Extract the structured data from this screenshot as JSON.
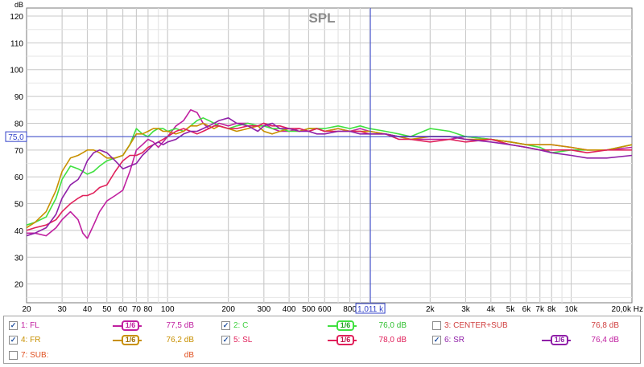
{
  "chart_data": {
    "type": "line",
    "title": "SPL",
    "y_unit": "dB",
    "x_unit": "Hz",
    "x_scale": "log",
    "xlim": [
      20,
      20000
    ],
    "ylim": [
      13,
      123
    ],
    "grid": true,
    "y_ticks": [
      120,
      110,
      100,
      90,
      80,
      70,
      60,
      50,
      40,
      30,
      20
    ],
    "x_ticks": [
      {
        "v": 20,
        "l": "20"
      },
      {
        "v": 30,
        "l": "30"
      },
      {
        "v": 40,
        "l": "40"
      },
      {
        "v": 50,
        "l": "50"
      },
      {
        "v": 60,
        "l": "60"
      },
      {
        "v": 70,
        "l": "70"
      },
      {
        "v": 80,
        "l": "80"
      },
      {
        "v": 100,
        "l": "100"
      },
      {
        "v": 200,
        "l": "200"
      },
      {
        "v": 300,
        "l": "300"
      },
      {
        "v": 400,
        "l": "400"
      },
      {
        "v": 500,
        "l": "500"
      },
      {
        "v": 600,
        "l": "600"
      },
      {
        "v": 800,
        "l": "800"
      },
      {
        "v": 2000,
        "l": "2k"
      },
      {
        "v": 3000,
        "l": "3k"
      },
      {
        "v": 4000,
        "l": "4k"
      },
      {
        "v": 5000,
        "l": "5k"
      },
      {
        "v": 6000,
        "l": "6k"
      },
      {
        "v": 7000,
        "l": "7k"
      },
      {
        "v": 8000,
        "l": "8k"
      },
      {
        "v": 10000,
        "l": "10k"
      },
      {
        "v": 20000,
        "l": "20,0k Hz"
      }
    ],
    "cursor": {
      "x": 1011,
      "x_label": "1,011 k",
      "y": 75.0,
      "y_label": "75,0"
    },
    "series": [
      {
        "name": "1: FL",
        "color": "#c020a0",
        "x": [
          20,
          22,
          25,
          28,
          30,
          33,
          36,
          38,
          40,
          43,
          46,
          50,
          55,
          60,
          65,
          70,
          75,
          80,
          85,
          90,
          95,
          100,
          110,
          120,
          130,
          140,
          150,
          160,
          170,
          180,
          200,
          220,
          250,
          280,
          300,
          330,
          360,
          400,
          450,
          500,
          550,
          600,
          700,
          800,
          900,
          1000,
          1200,
          1400,
          1600,
          2000,
          2500,
          3000,
          4000,
          5000,
          6000,
          7000,
          8000,
          10000,
          12000,
          15000,
          20000
        ],
        "y": [
          39,
          39,
          38,
          41,
          44,
          47,
          44,
          39,
          37,
          42,
          47,
          51,
          53,
          55,
          62,
          70,
          72,
          74,
          73,
          71,
          73,
          75,
          79,
          81,
          85,
          84,
          80,
          78,
          79,
          80,
          79,
          80,
          80,
          79,
          80,
          78,
          77,
          77,
          78,
          77,
          78,
          77,
          78,
          77,
          78,
          77,
          76,
          75,
          74,
          74,
          74,
          75,
          74,
          73,
          72,
          72,
          72,
          71,
          70,
          70,
          71
        ]
      },
      {
        "name": "2: C",
        "color": "#40e040",
        "x": [
          20,
          22,
          25,
          28,
          30,
          33,
          36,
          38,
          40,
          43,
          46,
          50,
          55,
          60,
          65,
          70,
          75,
          80,
          85,
          90,
          95,
          100,
          110,
          120,
          130,
          140,
          150,
          160,
          170,
          180,
          200,
          220,
          250,
          280,
          300,
          330,
          360,
          400,
          450,
          500,
          550,
          600,
          700,
          800,
          900,
          1000,
          1200,
          1400,
          1600,
          2000,
          2500,
          3000,
          4000,
          5000,
          6000,
          7000,
          8000,
          10000,
          12000,
          15000,
          20000
        ],
        "y": [
          42,
          43,
          45,
          52,
          59,
          64,
          63,
          62,
          61,
          62,
          64,
          66,
          67,
          68,
          72,
          78,
          76,
          75,
          77,
          78,
          78,
          77,
          78,
          77,
          79,
          81,
          82,
          81,
          80,
          79,
          78,
          79,
          80,
          79,
          79,
          78,
          78,
          77,
          77,
          78,
          78,
          78,
          79,
          78,
          79,
          78,
          77,
          76,
          75,
          78,
          77,
          75,
          74,
          73,
          72,
          71,
          69,
          70,
          70,
          70,
          72
        ]
      },
      {
        "name": "4: FR",
        "color": "#c89000",
        "x": [
          20,
          22,
          25,
          28,
          30,
          33,
          36,
          38,
          40,
          43,
          46,
          50,
          55,
          60,
          65,
          70,
          75,
          80,
          85,
          90,
          95,
          100,
          110,
          120,
          130,
          140,
          150,
          160,
          170,
          180,
          200,
          220,
          250,
          280,
          300,
          330,
          360,
          400,
          450,
          500,
          550,
          600,
          700,
          800,
          900,
          1000,
          1200,
          1400,
          1600,
          2000,
          2500,
          3000,
          4000,
          5000,
          6000,
          7000,
          8000,
          10000,
          12000,
          15000,
          20000
        ],
        "y": [
          41,
          43,
          47,
          55,
          62,
          67,
          68,
          69,
          70,
          70,
          69,
          67,
          67,
          68,
          72,
          76,
          76,
          77,
          78,
          78,
          77,
          77,
          76,
          77,
          79,
          79,
          80,
          79,
          78,
          79,
          78,
          77,
          78,
          79,
          77,
          76,
          77,
          78,
          77,
          78,
          78,
          77,
          78,
          77,
          77,
          77,
          76,
          75,
          74,
          75,
          75,
          74,
          74,
          73,
          72,
          72,
          72,
          71,
          70,
          70,
          72
        ]
      },
      {
        "name": "5: SL",
        "color": "#e0205a",
        "x": [
          20,
          22,
          25,
          28,
          30,
          33,
          36,
          38,
          40,
          43,
          46,
          50,
          55,
          60,
          65,
          70,
          75,
          80,
          85,
          90,
          95,
          100,
          110,
          120,
          130,
          140,
          150,
          160,
          170,
          180,
          200,
          220,
          250,
          280,
          300,
          330,
          360,
          400,
          450,
          500,
          550,
          600,
          700,
          800,
          900,
          1000,
          1200,
          1400,
          1600,
          2000,
          2500,
          3000,
          4000,
          5000,
          6000,
          7000,
          8000,
          10000,
          12000,
          15000,
          20000
        ],
        "y": [
          40,
          41,
          42,
          44,
          47,
          50,
          52,
          53,
          53,
          54,
          56,
          57,
          62,
          66,
          68,
          68,
          69,
          71,
          72,
          73,
          74,
          75,
          77,
          78,
          77,
          76,
          77,
          78,
          79,
          79,
          78,
          78,
          79,
          79,
          80,
          79,
          79,
          78,
          78,
          77,
          78,
          77,
          77,
          77,
          77,
          76,
          76,
          74,
          74,
          73,
          74,
          73,
          74,
          72,
          71,
          70,
          70,
          70,
          69,
          70,
          70
        ]
      },
      {
        "name": "6: SR",
        "color": "#9020a8",
        "x": [
          20,
          22,
          25,
          28,
          30,
          33,
          36,
          38,
          40,
          43,
          46,
          50,
          55,
          60,
          65,
          70,
          75,
          80,
          85,
          90,
          95,
          100,
          110,
          120,
          130,
          140,
          150,
          160,
          170,
          180,
          200,
          220,
          250,
          280,
          300,
          330,
          360,
          400,
          450,
          500,
          550,
          600,
          700,
          800,
          900,
          1000,
          1200,
          1400,
          1600,
          2000,
          2500,
          3000,
          4000,
          5000,
          6000,
          7000,
          8000,
          10000,
          12000,
          15000,
          20000
        ],
        "y": [
          38,
          39,
          41,
          46,
          52,
          57,
          59,
          62,
          66,
          69,
          70,
          69,
          66,
          63,
          64,
          65,
          68,
          70,
          72,
          73,
          72,
          73,
          74,
          76,
          77,
          77,
          78,
          79,
          80,
          81,
          82,
          80,
          79,
          77,
          79,
          80,
          78,
          78,
          77,
          77,
          76,
          76,
          77,
          77,
          76,
          76,
          76,
          75,
          75,
          75,
          75,
          74,
          73,
          72,
          71,
          70,
          69,
          68,
          67,
          67,
          68
        ]
      }
    ]
  },
  "legend": {
    "items": [
      {
        "checked": true,
        "label": "1: FL",
        "value": "77,5 dB",
        "color": "#c020a0",
        "smoothing": "1/6"
      },
      {
        "checked": true,
        "label": "2: C",
        "value": "76,0 dB",
        "color": "#40e040",
        "smoothing": "1/6"
      },
      {
        "checked": false,
        "label": "3: CENTER+SUB",
        "value": "76,8 dB",
        "color": "#d04040",
        "smoothing": ""
      },
      {
        "checked": true,
        "label": "4: FR",
        "value": "76,2 dB",
        "color": "#c89000",
        "smoothing": "1/6"
      },
      {
        "checked": true,
        "label": "5: SL",
        "value": "78,0 dB",
        "color": "#e0205a",
        "smoothing": "1/6"
      },
      {
        "checked": true,
        "label": "6: SR",
        "value": "76,4 dB",
        "color": "#9020a8",
        "smoothing": "1/6"
      },
      {
        "checked": false,
        "label": "7: SUB:",
        "value": "dB",
        "color": "#e05020",
        "smoothing": ""
      }
    ]
  }
}
